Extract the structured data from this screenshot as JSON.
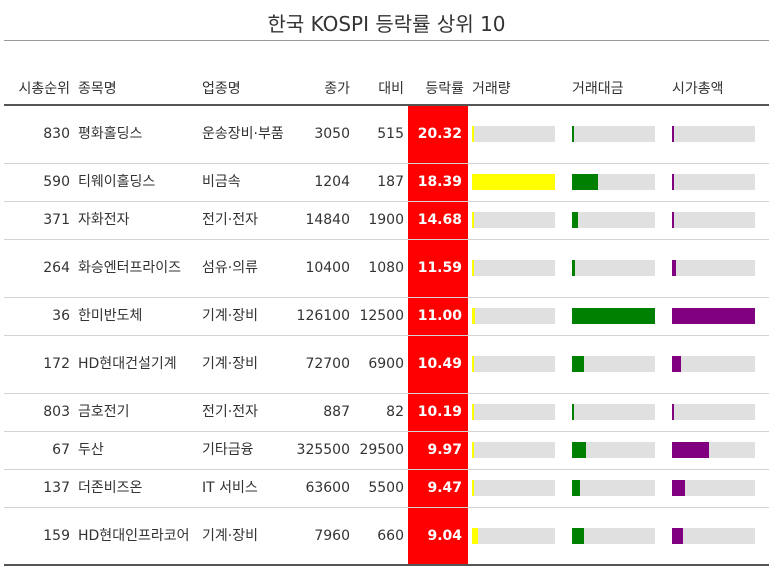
{
  "title": "한국 KOSPI 등락률 상위 10",
  "columns": {
    "rank": "시총순위",
    "name": "종목명",
    "sector": "업종명",
    "close": "종가",
    "change": "대비",
    "pct": "등락률",
    "volume": "거래량",
    "amount": "거래대금",
    "mcap": "시가총액"
  },
  "colors": {
    "pct_bg": "#ff0000",
    "volume": "#ffff00",
    "amount": "#008000",
    "mcap": "#800080",
    "track": "#e0e0e0"
  },
  "rows": [
    {
      "rank": "830",
      "name": "평화홀딩스",
      "sector": "운송장비·부품",
      "close": "3050",
      "change": "515",
      "pct": "20.32",
      "volume": 0.02,
      "amount": 0.02,
      "mcap": 0.02
    },
    {
      "rank": "590",
      "name": "티웨이홀딩스",
      "sector": "비금속",
      "close": "1204",
      "change": "187",
      "pct": "18.39",
      "volume": 1.0,
      "amount": 0.31,
      "mcap": 0.02
    },
    {
      "rank": "371",
      "name": "자화전자",
      "sector": "전기·전자",
      "close": "14840",
      "change": "1900",
      "pct": "14.68",
      "volume": 0.02,
      "amount": 0.07,
      "mcap": 0.03
    },
    {
      "rank": "264",
      "name": "화승엔터프라이즈",
      "sector": "섬유·의류",
      "close": "10400",
      "change": "1080",
      "pct": "11.59",
      "volume": 0.02,
      "amount": 0.04,
      "mcap": 0.05
    },
    {
      "rank": "36",
      "name": "한미반도체",
      "sector": "기계·장비",
      "close": "126100",
      "change": "12500",
      "pct": "11.00",
      "volume": 0.04,
      "amount": 1.0,
      "mcap": 1.0
    },
    {
      "rank": "172",
      "name": "HD현대건설기계",
      "sector": "기계·장비",
      "close": "72700",
      "change": "6900",
      "pct": "10.49",
      "volume": 0.02,
      "amount": 0.15,
      "mcap": 0.11
    },
    {
      "rank": "803",
      "name": "금호전기",
      "sector": "전기·전자",
      "close": "887",
      "change": "82",
      "pct": "10.19",
      "volume": 0.02,
      "amount": 0.02,
      "mcap": 0.02
    },
    {
      "rank": "67",
      "name": "두산",
      "sector": "기타금융",
      "close": "325500",
      "change": "29500",
      "pct": "9.97",
      "volume": 0.02,
      "amount": 0.17,
      "mcap": 0.44
    },
    {
      "rank": "137",
      "name": "더존비즈온",
      "sector": "IT 서비스",
      "close": "63600",
      "change": "5500",
      "pct": "9.47",
      "volume": 0.02,
      "amount": 0.1,
      "mcap": 0.16
    },
    {
      "rank": "159",
      "name": "HD현대인프라코어",
      "sector": "기계·장비",
      "close": "7960",
      "change": "660",
      "pct": "9.04",
      "volume": 0.07,
      "amount": 0.15,
      "mcap": 0.13
    }
  ]
}
